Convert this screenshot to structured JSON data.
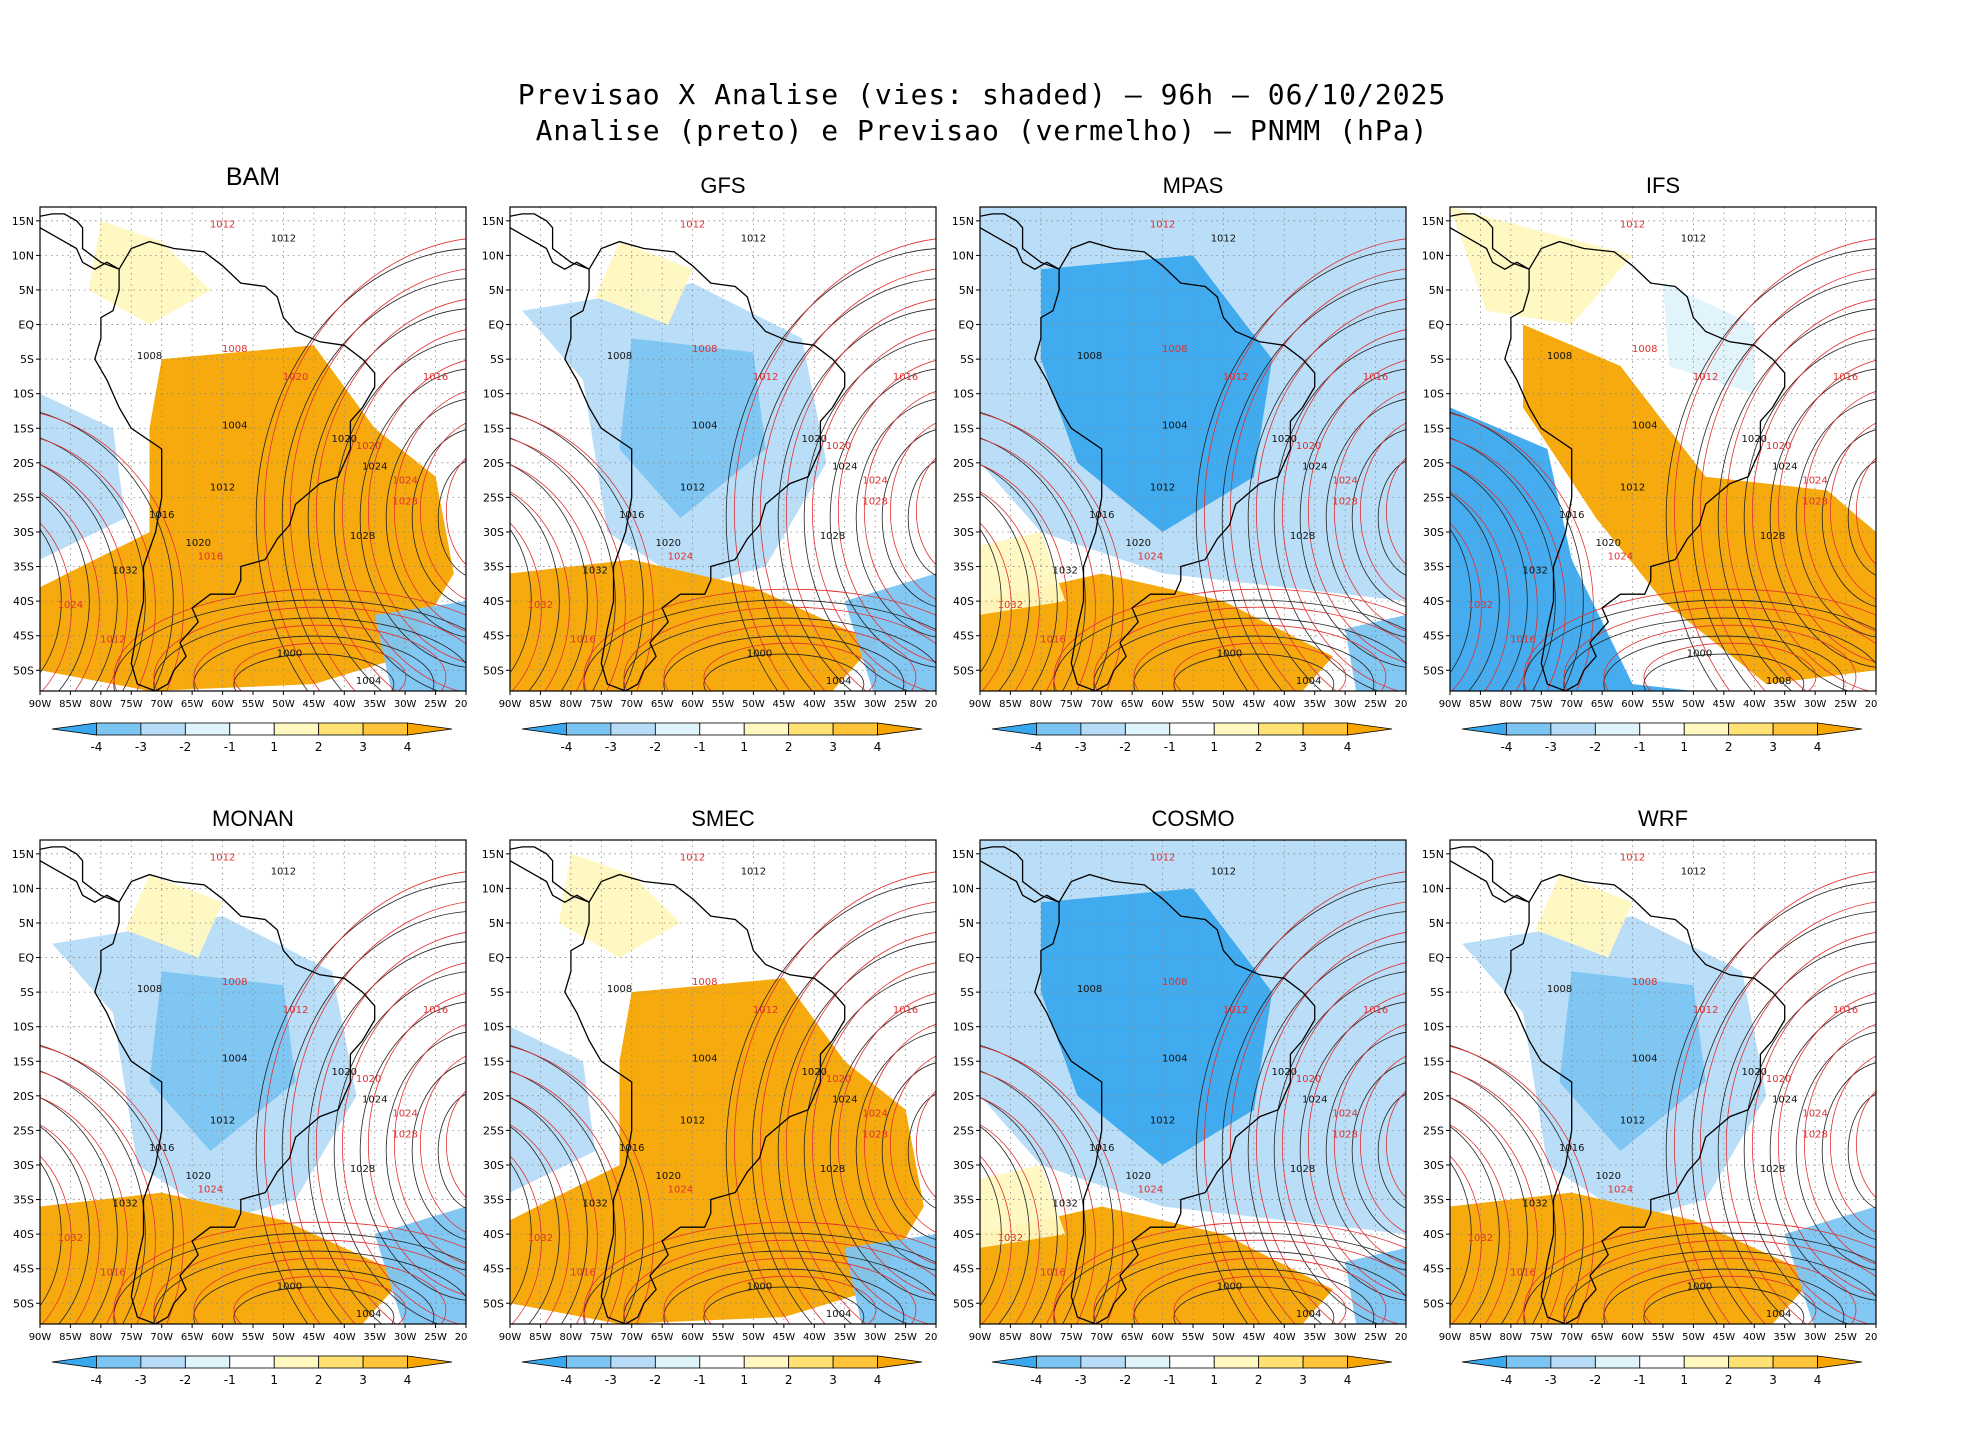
{
  "figure": {
    "title_line1": "Previsao X Analise (vies: shaded) — 96h — 06/10/2025",
    "title_line2": "Analise (preto) e Previsao (vermelho) — PNMM (hPa)"
  },
  "lat_labels": [
    "15N",
    "10N",
    "5N",
    "EQ",
    "5S",
    "10S",
    "15S",
    "20S",
    "25S",
    "30S",
    "35S",
    "40S",
    "45S",
    "50S"
  ],
  "lon_labels": [
    "90W",
    "85W",
    "80W",
    "75W",
    "70W",
    "65W",
    "60W",
    "55W",
    "50W",
    "45W",
    "40W",
    "35W",
    "30W",
    "25W",
    "20W"
  ],
  "colorbar": {
    "ticks": [
      "-4",
      "-3",
      "-2",
      "-1",
      "1",
      "2",
      "3",
      "4"
    ],
    "colors": [
      "#3aa8ee",
      "#7cc4f2",
      "#b6dcf7",
      "#dff3fb",
      "#ffffff",
      "#fff8c0",
      "#ffe174",
      "#ffc43a",
      "#f7a500"
    ]
  },
  "panels": [
    {
      "model": "BAM",
      "bias": "warm",
      "black_labels": [
        "1012",
        "1008",
        "1004",
        "1020",
        "1024",
        "1028",
        "1032",
        "1000",
        "1004",
        "1012",
        "1016",
        "1020"
      ],
      "red_labels": [
        "1012",
        "1008",
        "1016",
        "1020",
        "1024",
        "1028",
        "1024",
        "1016",
        "1012",
        "1020"
      ]
    },
    {
      "model": "GFS",
      "bias": "mixed",
      "black_labels": [
        "1012",
        "1008",
        "1004",
        "1020",
        "1024",
        "1028",
        "1032",
        "1000",
        "1004",
        "1012",
        "1016",
        "1020"
      ],
      "red_labels": [
        "1012",
        "1008",
        "1016",
        "1020",
        "1024",
        "1028",
        "1032",
        "1024",
        "1016",
        "1012"
      ]
    },
    {
      "model": "MPAS",
      "bias": "cool",
      "black_labels": [
        "1012",
        "1008",
        "1004",
        "1020",
        "1024",
        "1028",
        "1032",
        "1000",
        "1004",
        "1012",
        "1016",
        "1020"
      ],
      "red_labels": [
        "1012",
        "1008",
        "1016",
        "1020",
        "1024",
        "1028",
        "1032",
        "1024",
        "1016",
        "1012"
      ]
    },
    {
      "model": "IFS",
      "bias": "warmcool",
      "black_labels": [
        "1012",
        "1008",
        "1004",
        "1020",
        "1024",
        "1028",
        "1032",
        "1000",
        "1008",
        "1012",
        "1016",
        "1020"
      ],
      "red_labels": [
        "1012",
        "1008",
        "1016",
        "1020",
        "1024",
        "1028",
        "1032",
        "1024",
        "1016",
        "1012"
      ]
    },
    {
      "model": "MONAN",
      "bias": "mixed",
      "black_labels": [
        "1012",
        "1008",
        "1004",
        "1020",
        "1024",
        "1028",
        "1032",
        "1000",
        "1004",
        "1012",
        "1016",
        "1020"
      ],
      "red_labels": [
        "1012",
        "1008",
        "1016",
        "1020",
        "1024",
        "1028",
        "1032",
        "1024",
        "1016",
        "1012"
      ]
    },
    {
      "model": "SMEC",
      "bias": "warm",
      "black_labels": [
        "1012",
        "1008",
        "1004",
        "1020",
        "1024",
        "1028",
        "1032",
        "1000",
        "1004",
        "1012",
        "1016",
        "1020"
      ],
      "red_labels": [
        "1012",
        "1008",
        "1016",
        "1020",
        "1024",
        "1028",
        "1032",
        "1024",
        "1016",
        "1012"
      ]
    },
    {
      "model": "COSMO",
      "bias": "cool",
      "black_labels": [
        "1012",
        "1008",
        "1004",
        "1020",
        "1024",
        "1028",
        "1032",
        "1000",
        "1004",
        "1012",
        "1016",
        "1020"
      ],
      "red_labels": [
        "1012",
        "1008",
        "1016",
        "1020",
        "1024",
        "1028",
        "1032",
        "1024",
        "1016",
        "1012"
      ]
    },
    {
      "model": "WRF",
      "bias": "mixed",
      "black_labels": [
        "1012",
        "1008",
        "1004",
        "1020",
        "1024",
        "1028",
        "1032",
        "1000",
        "1004",
        "1012",
        "1016",
        "1020"
      ],
      "red_labels": [
        "1012",
        "1008",
        "1016",
        "1020",
        "1024",
        "1028",
        "1032",
        "1024",
        "1016",
        "1012"
      ]
    }
  ]
}
